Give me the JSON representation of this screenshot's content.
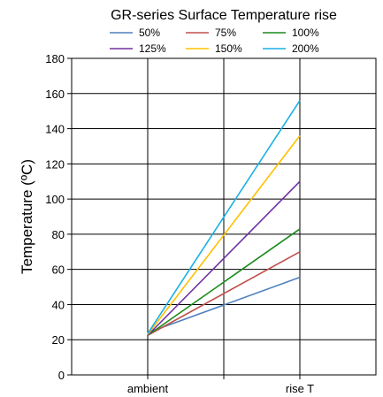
{
  "chart_data": {
    "type": "line",
    "title": "GR-series Surface Temperature rise",
    "xlabel": "",
    "ylabel": "Temperature (ºC)",
    "categories": [
      "ambient",
      "rise T"
    ],
    "ylim": [
      0,
      180
    ],
    "yticks": [
      0,
      20,
      40,
      60,
      80,
      100,
      120,
      140,
      160,
      180
    ],
    "grid": true,
    "legend": "top",
    "series": [
      {
        "name": "50%",
        "color": "#4f81bd",
        "values": [
          24,
          55.5
        ]
      },
      {
        "name": "75%",
        "color": "#c0504d",
        "values": [
          22.5,
          70
        ]
      },
      {
        "name": "100%",
        "color": "#1a8a1a",
        "values": [
          22.5,
          83
        ]
      },
      {
        "name": "125%",
        "color": "#7030a0",
        "values": [
          22.5,
          110
        ]
      },
      {
        "name": "150%",
        "color": "#ffc000",
        "values": [
          23,
          136
        ]
      },
      {
        "name": "200%",
        "color": "#1ab0e6",
        "values": [
          23.5,
          156
        ]
      }
    ]
  }
}
